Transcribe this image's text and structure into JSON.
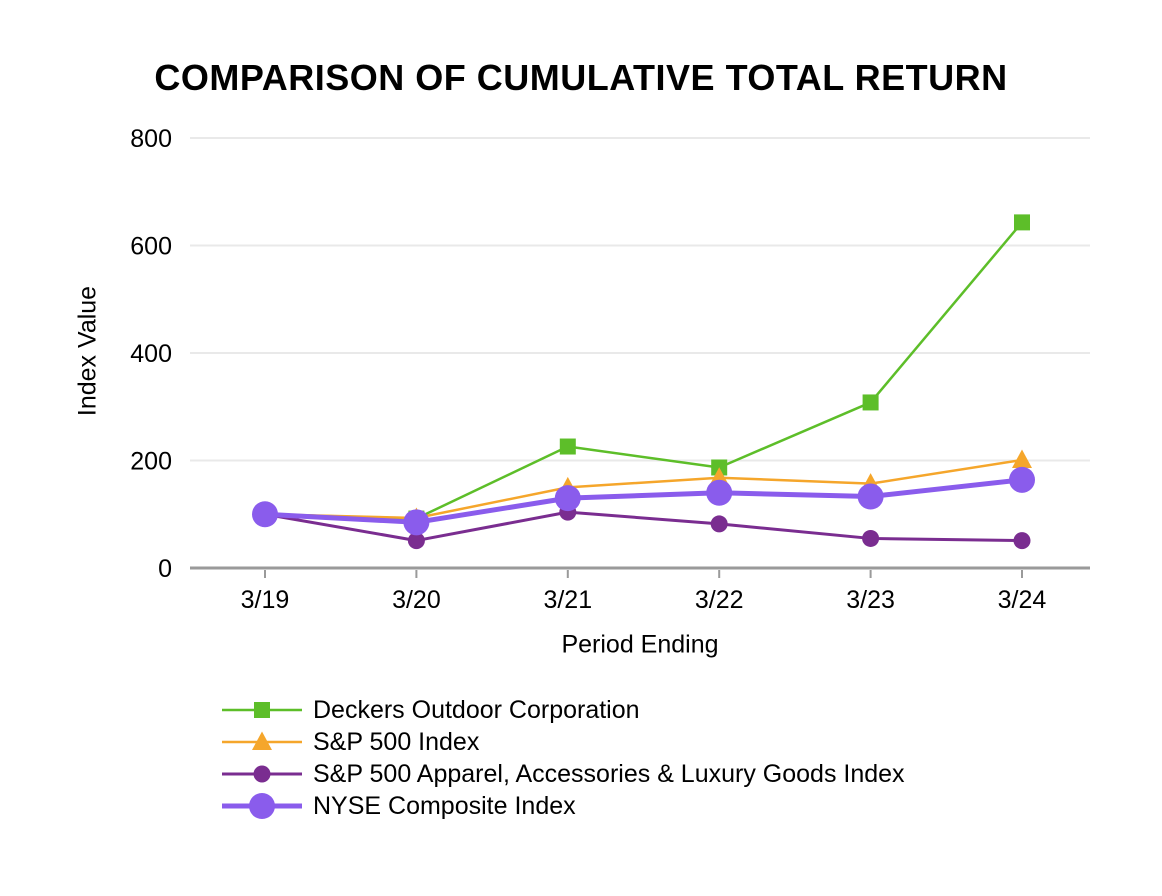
{
  "chart_data": {
    "type": "line",
    "title": "COMPARISON OF CUMULATIVE TOTAL RETURN",
    "xlabel": "Period Ending",
    "ylabel": "Index Value",
    "categories": [
      "3/19",
      "3/20",
      "3/21",
      "3/22",
      "3/23",
      "3/24"
    ],
    "yticks": [
      0,
      200,
      400,
      600,
      800
    ],
    "ylim": [
      0,
      800
    ],
    "grid": "horizontal-only",
    "legend_position": "bottom-left",
    "background_color": "#ffffff",
    "gridline_color": "#e9e9e9",
    "axis_color": "#9a9a9a",
    "series": [
      {
        "name": "Deckers Outdoor Corporation",
        "color": "#5dbe29",
        "marker": "square",
        "marker_size": 16,
        "line_width": 2.5,
        "values": [
          100,
          92,
          226,
          187,
          308,
          643
        ]
      },
      {
        "name": "S&P 500 Index",
        "color": "#f5a62b",
        "marker": "triangle",
        "marker_size": 20,
        "line_width": 2.5,
        "values": [
          100,
          93,
          150,
          168,
          157,
          201
        ]
      },
      {
        "name": "S&P 500 Apparel, Accessories & Luxury Goods Index",
        "color": "#7a2d90",
        "marker": "circle",
        "marker_size": 17,
        "line_width": 3,
        "values": [
          100,
          51,
          104,
          82,
          55,
          51
        ]
      },
      {
        "name": "NYSE Composite Index",
        "color": "#8a5cec",
        "marker": "circle",
        "marker_size": 26,
        "line_width": 5,
        "values": [
          100,
          85,
          130,
          140,
          133,
          164
        ]
      }
    ]
  }
}
